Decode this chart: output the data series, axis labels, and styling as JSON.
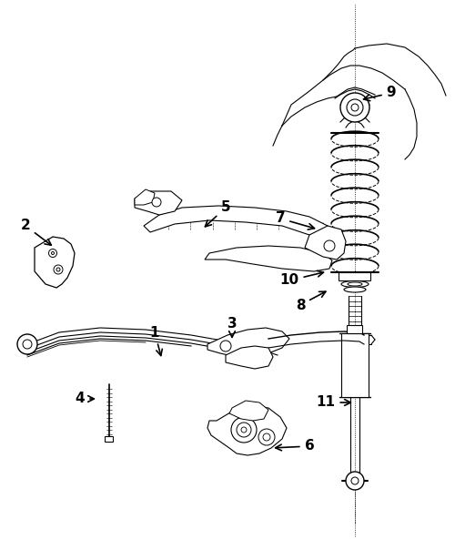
{
  "background_color": "#ffffff",
  "line_color": "#000000",
  "fig_width": 5.0,
  "fig_height": 6.04,
  "dpi": 100,
  "label_configs": [
    [
      "1",
      170,
      365,
      178,
      395
    ],
    [
      "2",
      28,
      248,
      60,
      272
    ],
    [
      "3",
      255,
      355,
      255,
      375
    ],
    [
      "4",
      88,
      438,
      108,
      438
    ],
    [
      "5",
      248,
      228,
      222,
      252
    ],
    [
      "6",
      340,
      490,
      298,
      492
    ],
    [
      "7",
      308,
      240,
      350,
      252
    ],
    [
      "8",
      330,
      335,
      362,
      318
    ],
    [
      "9",
      430,
      102,
      395,
      110
    ],
    [
      "10",
      318,
      308,
      360,
      298
    ],
    [
      "11",
      358,
      442,
      390,
      442
    ]
  ]
}
